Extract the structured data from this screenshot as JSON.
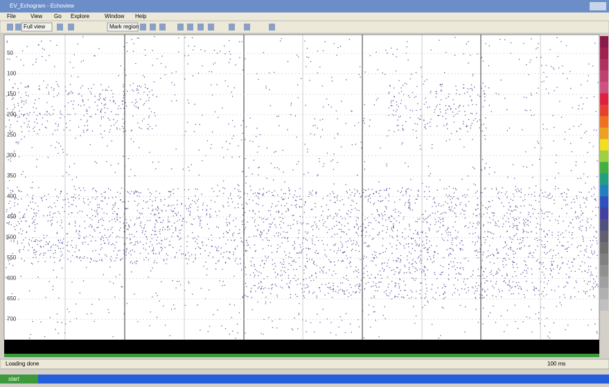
{
  "window": {
    "title": "EV_Echogram - Echoview"
  },
  "menu": [
    "File",
    "View",
    "Go",
    "Explore",
    "Window",
    "Help"
  ],
  "toolbar": [
    "Full view",
    "Mark region"
  ],
  "echogram": {
    "depth_labels": [
      "50",
      "100",
      "150",
      "200",
      "250",
      "300",
      "350",
      "400",
      "450",
      "500",
      "550",
      "600",
      "650",
      "700"
    ]
  },
  "status": {
    "left": "Loading done",
    "right": "100 ms"
  },
  "taskbar": {
    "start": "start"
  }
}
